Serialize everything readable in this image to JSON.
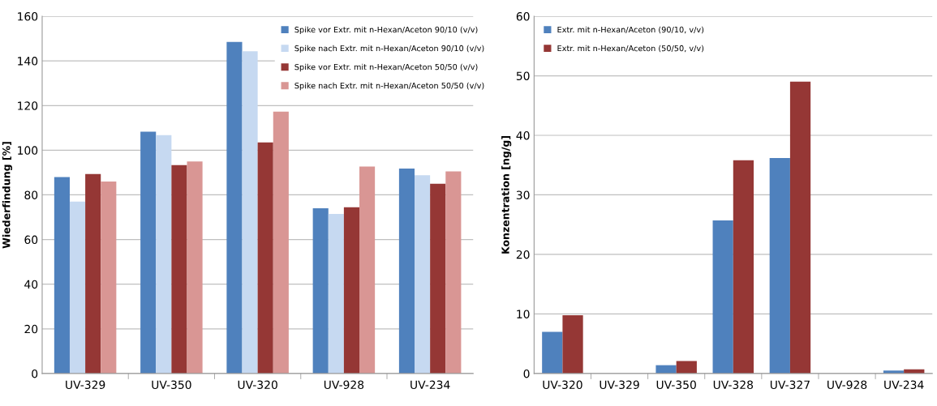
{
  "chart_data": [
    {
      "type": "bar",
      "ylabel": "Wiederfindung [%]",
      "categories": [
        "UV-329",
        "UV-350",
        "UV-320",
        "UV-928",
        "UV-234"
      ],
      "ylim": [
        0,
        160
      ],
      "yticks": [
        0,
        20,
        40,
        60,
        80,
        100,
        120,
        140,
        160
      ],
      "grid": "y",
      "legend": "top right",
      "series": [
        {
          "name": "Spike vor Extr. mit n-Hexan/Aceton 90/10 (v/v)",
          "color": "#4f81bd",
          "values": [
            88,
            108.3,
            148.5,
            74,
            91.8
          ]
        },
        {
          "name": "Spike nach Extr. mit n-Hexan/Aceton 90/10 (v/v)",
          "color": "#c6d9f1",
          "values": [
            77,
            106.8,
            144.3,
            71.5,
            88.8
          ]
        },
        {
          "name": "Spike vor Extr. mit n-Hexan/Aceton 50/50 (v/v)",
          "color": "#953735",
          "values": [
            89.3,
            93.3,
            103.5,
            74.5,
            85
          ]
        },
        {
          "name": "Spike nach Extr. mit n-Hexan/Aceton 50/50 (v/v)",
          "color": "#d99694",
          "values": [
            86,
            95,
            117.3,
            92.7,
            90.5
          ]
        }
      ]
    },
    {
      "type": "bar",
      "ylabel": "Konzentration [ng/g]",
      "categories": [
        "UV-320",
        "UV-329",
        "UV-350",
        "UV-328",
        "UV-327",
        "UV-928",
        "UV-234"
      ],
      "ylim": [
        0,
        60
      ],
      "yticks": [
        0,
        10,
        20,
        30,
        40,
        50,
        60
      ],
      "grid": "y",
      "legend": "top left",
      "series": [
        {
          "name": "Extr. mit n-Hexan/Aceton (90/10, v/v)",
          "color": "#4f81bd",
          "values": [
            7,
            0,
            1.4,
            25.7,
            36.2,
            0,
            0.5
          ]
        },
        {
          "name": "Extr. mit n-Hexan/Aceton (50/50, v/v)",
          "color": "#953735",
          "values": [
            9.8,
            0,
            2.1,
            35.8,
            49,
            0,
            0.7
          ]
        }
      ]
    }
  ]
}
